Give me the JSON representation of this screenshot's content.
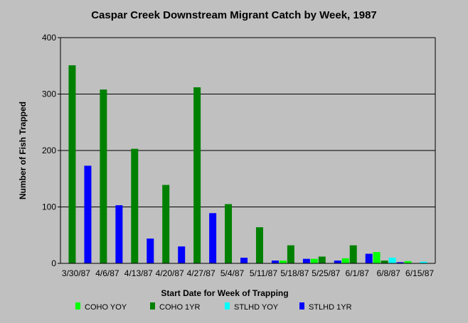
{
  "chart_data": {
    "type": "bar",
    "title": "Caspar Creek Downstream Migrant Catch by Week, 1987",
    "xlabel": "Start Date for Week of Trapping",
    "ylabel": "Number of Fish Trapped",
    "ylim": [
      0,
      400
    ],
    "yticks": [
      0,
      100,
      200,
      300,
      400
    ],
    "grid": true,
    "legend_position": "bottom",
    "categories": [
      "3/30/87",
      "4/6/87",
      "4/13/87",
      "4/20/87",
      "4/27/87",
      "5/4/87",
      "5/11/87",
      "5/18/87",
      "5/25/87",
      "6/1/87",
      "6/8/87",
      "6/15/87"
    ],
    "series": [
      {
        "name": "COHO YOY",
        "color": "#00ff00",
        "values": [
          0,
          0,
          0,
          0,
          0,
          0,
          0,
          5,
          8,
          9,
          20,
          4
        ]
      },
      {
        "name": "COHO 1YR",
        "color": "#008000",
        "values": [
          351,
          308,
          203,
          139,
          312,
          105,
          64,
          32,
          12,
          32,
          5,
          0
        ]
      },
      {
        "name": "STLHD YOY",
        "color": "#00ffff",
        "values": [
          0,
          0,
          0,
          0,
          0,
          0,
          0,
          0,
          0,
          0,
          10,
          3
        ]
      },
      {
        "name": "STLHD 1YR",
        "color": "#0000ff",
        "values": [
          173,
          103,
          44,
          30,
          89,
          10,
          5,
          8,
          5,
          17,
          2,
          0
        ]
      }
    ]
  }
}
